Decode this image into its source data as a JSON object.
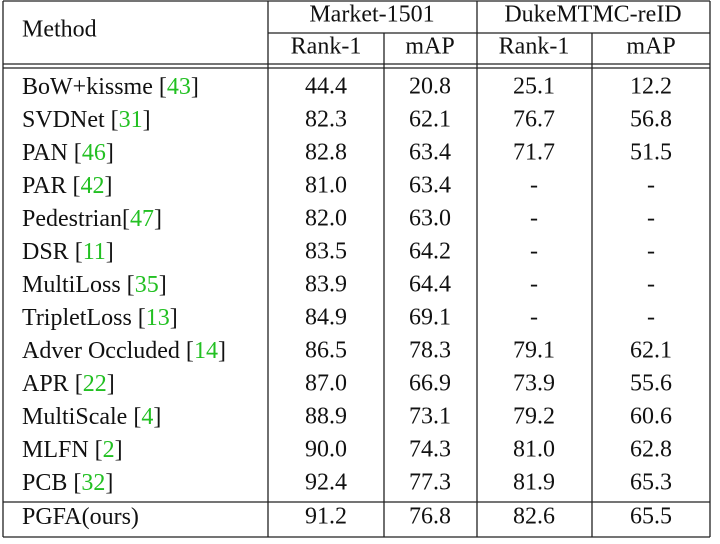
{
  "header": {
    "method": "Method",
    "groups": [
      "Market-1501",
      "DukeMTMC-reID"
    ],
    "columns": [
      "Rank-1",
      "mAP",
      "Rank-1",
      "mAP"
    ]
  },
  "rows": [
    {
      "method": {
        "text": "BoW+kissme [",
        "ref": "43",
        "end": "]"
      },
      "values": [
        "44.4",
        "20.8",
        "25.1",
        "12.2"
      ]
    },
    {
      "method": {
        "text": "SVDNet [",
        "ref": "31",
        "end": "]"
      },
      "values": [
        "82.3",
        "62.1",
        "76.7",
        "56.8"
      ]
    },
    {
      "method": {
        "text": "PAN [",
        "ref": "46",
        "end": "]"
      },
      "values": [
        "82.8",
        "63.4",
        "71.7",
        "51.5"
      ]
    },
    {
      "method": {
        "text": "PAR [",
        "ref": "42",
        "end": "]"
      },
      "values": [
        "81.0",
        "63.4",
        "-",
        "-"
      ]
    },
    {
      "method": {
        "text": "Pedestrian[",
        "ref": "47",
        "end": "]"
      },
      "values": [
        "82.0",
        "63.0",
        "-",
        "-"
      ]
    },
    {
      "method": {
        "text": "DSR [",
        "ref": "11",
        "end": "]"
      },
      "values": [
        "83.5",
        "64.2",
        "-",
        "-"
      ]
    },
    {
      "method": {
        "text": "MultiLoss [",
        "ref": "35",
        "end": "]"
      },
      "values": [
        "83.9",
        "64.4",
        "-",
        "-"
      ]
    },
    {
      "method": {
        "text": "TripletLoss [",
        "ref": "13",
        "end": "]"
      },
      "values": [
        "84.9",
        "69.1",
        "-",
        "-"
      ]
    },
    {
      "method": {
        "text": "Adver Occluded [",
        "ref": "14",
        "end": "]"
      },
      "values": [
        "86.5",
        "78.3",
        "79.1",
        "62.1"
      ]
    },
    {
      "method": {
        "text": "APR [",
        "ref": "22",
        "end": "]"
      },
      "values": [
        "87.0",
        "66.9",
        "73.9",
        "55.6"
      ]
    },
    {
      "method": {
        "text": "MultiScale [",
        "ref": "4",
        "end": "]"
      },
      "values": [
        "88.9",
        "73.1",
        "79.2",
        "60.6"
      ]
    },
    {
      "method": {
        "text": "MLFN [",
        "ref": "2",
        "end": "]"
      },
      "values": [
        "90.0",
        "74.3",
        "81.0",
        "62.8"
      ]
    },
    {
      "method": {
        "text": "PCB [",
        "ref": "32",
        "end": "]"
      },
      "values": [
        "92.4",
        "77.3",
        "81.9",
        "65.3"
      ]
    },
    {
      "method": {
        "text": "PGFA(ours)"
      },
      "values": [
        "91.2",
        "76.8",
        "82.6",
        "65.5"
      ]
    }
  ]
}
